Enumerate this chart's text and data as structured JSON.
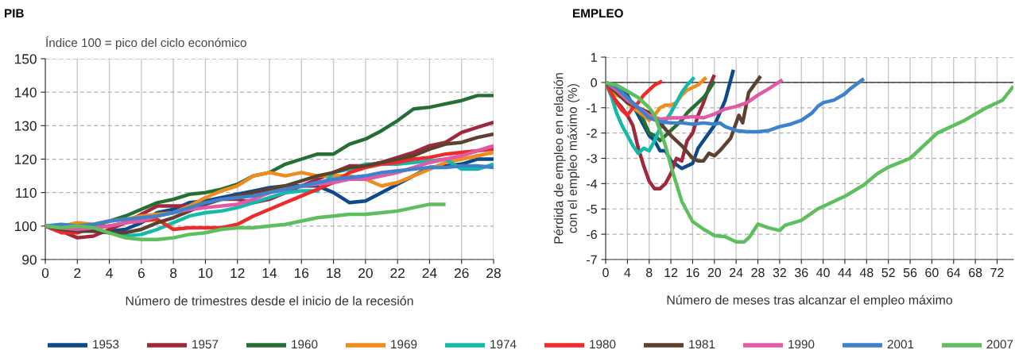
{
  "chart_data": [
    {
      "type": "line",
      "title": "PIB",
      "subtitle": "Índice 100 = pico del ciclo económico",
      "xlabel": "Número de trimestres desde el inicio de la recesión",
      "x": [
        0,
        1,
        2,
        3,
        4,
        5,
        6,
        7,
        8,
        9,
        10,
        11,
        12,
        13,
        14,
        15,
        16,
        17,
        18,
        19,
        20,
        21,
        22,
        23,
        24,
        25,
        26,
        27,
        28
      ],
      "xlim": [
        0,
        28
      ],
      "xticks": [
        0,
        2,
        4,
        6,
        8,
        10,
        12,
        14,
        16,
        18,
        20,
        22,
        24,
        26,
        28
      ],
      "ylim": [
        90,
        150
      ],
      "yticks": [
        90,
        100,
        110,
        120,
        130,
        140,
        150
      ],
      "grid": true,
      "legend": "bottom",
      "line_style": "solid",
      "marker": "none",
      "series": [
        {
          "name": "1953",
          "color": "#0d4a8a",
          "values": [
            100,
            99.5,
            99.5,
            98.5,
            98.5,
            99,
            101,
            104,
            105,
            107,
            107.5,
            108.5,
            109.5,
            110.5,
            111.5,
            112,
            112,
            112,
            110,
            107,
            107.5,
            110,
            112.5,
            115,
            117.5,
            118,
            118.5,
            120,
            120
          ]
        },
        {
          "name": "1957",
          "color": "#a0283c",
          "values": [
            100,
            98.5,
            96.5,
            97,
            99,
            101,
            103.5,
            106,
            106,
            106,
            107,
            108,
            108,
            107,
            108,
            110,
            112,
            114,
            116,
            118,
            118,
            119,
            120.5,
            122,
            124,
            125,
            128,
            129.5,
            131
          ]
        },
        {
          "name": "1960",
          "color": "#256f35",
          "values": [
            100,
            99.5,
            99.5,
            100,
            101.5,
            103,
            105,
            107,
            108,
            109.5,
            110,
            111,
            112.5,
            115,
            116,
            118.5,
            120,
            121.5,
            121.5,
            124.5,
            126,
            128.5,
            131.5,
            135,
            135.5,
            136.5,
            137.5,
            139,
            139
          ]
        },
        {
          "name": "1969",
          "color": "#f08c1e",
          "values": [
            100,
            100,
            101,
            100.5,
            101.5,
            102,
            103,
            103.5,
            104,
            106,
            108.5,
            110.5,
            112,
            115,
            116,
            115,
            116,
            115,
            115,
            115,
            114,
            112,
            113,
            115,
            117,
            119,
            120,
            121,
            122
          ]
        },
        {
          "name": "1974",
          "color": "#14b9a9",
          "values": [
            null,
            null,
            null,
            null,
            98,
            97,
            97.5,
            99,
            101,
            103,
            104,
            104.5,
            105.5,
            107,
            108.5,
            110,
            110.5,
            110.5,
            116,
            117,
            118.5,
            118.5,
            118.5,
            119,
            119.5,
            120,
            117,
            117,
            118.5
          ]
        },
        {
          "name": "1980",
          "color": "#ee2a2a",
          "values": [
            100,
            98,
            98,
            99.5,
            100,
            101,
            101.5,
            102,
            99,
            99.5,
            99.5,
            99.5,
            100.5,
            103,
            105,
            107,
            109,
            111,
            113,
            116,
            117.5,
            118.5,
            119,
            120,
            120.5,
            121.5,
            122,
            122.5,
            123
          ]
        },
        {
          "name": "1981",
          "color": "#5c4030",
          "values": [
            100,
            99,
            98.5,
            98.5,
            98,
            98,
            99,
            101,
            102.5,
            104.5,
            106.5,
            108,
            109,
            110,
            111,
            112,
            113.5,
            115,
            116,
            117.5,
            118,
            119,
            120,
            121,
            123,
            124.5,
            125,
            126.5,
            127.5
          ]
        },
        {
          "name": "1990",
          "color": "#e05aa5",
          "values": [
            100,
            99.5,
            99,
            99.5,
            100,
            101,
            101.5,
            103,
            104,
            105,
            105.5,
            106,
            106.5,
            108,
            110,
            111,
            112,
            112.5,
            113,
            114,
            114,
            115,
            116,
            117.5,
            119,
            120,
            121,
            122.5,
            124
          ]
        },
        {
          "name": "2001",
          "color": "#3f82cc",
          "values": [
            100,
            100.5,
            100,
            100.5,
            101.5,
            102,
            102.5,
            103,
            104,
            105.5,
            107,
            108,
            108.5,
            109,
            110,
            111,
            112,
            113,
            114,
            114.5,
            115,
            116,
            116.5,
            117,
            117.5,
            117.5,
            118,
            118,
            117.5
          ]
        },
        {
          "name": "2007",
          "color": "#5fbf5f",
          "values": [
            100,
            99.5,
            100,
            99.5,
            98,
            96.5,
            96,
            96,
            96.5,
            97.5,
            98,
            99,
            99.5,
            99.5,
            100,
            100.5,
            101.5,
            102.5,
            103,
            103.5,
            103.5,
            104,
            104.5,
            105.5,
            106.5,
            106.5,
            null,
            null,
            null
          ]
        }
      ]
    },
    {
      "type": "line",
      "title": "EMPLEO",
      "xlabel": "Número de meses tras alcanzar el empleo máximo",
      "ylabel": "Pérdida de empleo en relación\ncon el empleo máximo (%)",
      "xlim": [
        0,
        75
      ],
      "xticks": [
        0,
        4,
        8,
        12,
        16,
        20,
        24,
        28,
        32,
        36,
        40,
        44,
        48,
        52,
        56,
        60,
        64,
        68,
        72
      ],
      "ylim": [
        -7,
        1
      ],
      "yticks": [
        -7,
        -6,
        -5,
        -4,
        -3,
        -2,
        -1,
        0,
        1
      ],
      "grid": true,
      "line_style": "solid",
      "marker": "none",
      "ref_lines": [
        {
          "axis": "y",
          "value": 0,
          "color": "#222222"
        }
      ],
      "series": [
        {
          "color": "#0d4a8a",
          "x": [
            0,
            2,
            4,
            6,
            8,
            9,
            10,
            11,
            12,
            14,
            16,
            17,
            19,
            20,
            22,
            23.5
          ],
          "values": [
            0,
            -0.2,
            -0.5,
            -1.3,
            -2.1,
            -2.3,
            -2.7,
            -2.7,
            -3.1,
            -3.4,
            -3.2,
            -2.6,
            -2,
            -1.7,
            -0.7,
            0.5
          ]
        },
        {
          "color": "#a0283c",
          "x": [
            0,
            1,
            3,
            4,
            5,
            6,
            7,
            8,
            9,
            10,
            11,
            12,
            13,
            14,
            15,
            16,
            17,
            18,
            19,
            20
          ],
          "values": [
            0,
            -0.5,
            -1,
            -1.3,
            -1.7,
            -2.6,
            -3.3,
            -3.9,
            -4.2,
            -4.2,
            -4.0,
            -3.6,
            -3.0,
            -3.1,
            -2.3,
            -2.0,
            -1.3,
            -0.8,
            -0.2,
            0.3
          ]
        },
        {
          "color": "#256f35",
          "x": [
            0,
            2,
            4,
            5,
            6,
            7,
            8,
            9,
            10,
            11,
            12,
            14,
            15,
            16,
            17,
            18,
            19,
            20
          ],
          "values": [
            0,
            -0.2,
            -0.7,
            -0.9,
            -1.1,
            -1.5,
            -2.0,
            -2.1,
            -2.3,
            -2.1,
            -1.9,
            -1.5,
            -1.2,
            -1.0,
            -0.8,
            -0.6,
            -0.3,
            0.05
          ]
        },
        {
          "color": "#f08c1e",
          "x": [
            0,
            1,
            2,
            3,
            5,
            7,
            8,
            9,
            10,
            11,
            12,
            13,
            14,
            15,
            16,
            17,
            18.5
          ],
          "values": [
            0,
            -0.3,
            -0.5,
            -0.6,
            -1.0,
            -1.3,
            -1.5,
            -1.3,
            -1.0,
            -0.9,
            -0.9,
            -0.8,
            -0.5,
            -0.3,
            -0.2,
            -0.1,
            0.2
          ]
        },
        {
          "color": "#14b9a9",
          "x": [
            0,
            1,
            2,
            3,
            4,
            5,
            6,
            7,
            8,
            9,
            10,
            11,
            12,
            13,
            14,
            15,
            16.3
          ],
          "values": [
            0,
            -0.5,
            -1.2,
            -1.7,
            -2.1,
            -2.5,
            -2.8,
            -2.6,
            -2.7,
            -2.3,
            -1.8,
            -1.5,
            -1.2,
            -0.8,
            -0.4,
            -0.1,
            0.2
          ]
        },
        {
          "color": "#ee2a2a",
          "x": [
            0,
            1,
            2,
            3,
            4,
            5,
            6,
            7,
            8,
            9,
            10.4
          ],
          "values": [
            0,
            -0.4,
            -0.8,
            -1.1,
            -1.3,
            -1.0,
            -0.8,
            -0.5,
            -0.3,
            -0.1,
            0.05
          ]
        },
        {
          "color": "#5c4030",
          "x": [
            0,
            2,
            4,
            6,
            8,
            10,
            12,
            14,
            16,
            17,
            18,
            19,
            20,
            21,
            23,
            24.5,
            25.2,
            26.3,
            28.5
          ],
          "values": [
            0,
            -0.4,
            -0.8,
            -1.0,
            -1.2,
            -1.6,
            -2.1,
            -2.5,
            -3.0,
            -3.1,
            -3.1,
            -2.8,
            -2.9,
            -2.7,
            -2.2,
            -1.3,
            -1.6,
            -0.4,
            0.25
          ]
        },
        {
          "color": "#e05aa5",
          "x": [
            0,
            2,
            4,
            6,
            8,
            10,
            12,
            14,
            16,
            18,
            20,
            22,
            24,
            26,
            28,
            30,
            32.5
          ],
          "values": [
            0,
            -0.3,
            -0.7,
            -1.0,
            -1.3,
            -1.45,
            -1.4,
            -1.4,
            -1.35,
            -1.4,
            -1.25,
            -1.05,
            -0.95,
            -0.8,
            -0.5,
            -0.25,
            0.1
          ]
        },
        {
          "color": "#3f82cc",
          "x": [
            0,
            2,
            4,
            6,
            8,
            10,
            12,
            14,
            16,
            18,
            20,
            21,
            22,
            24,
            26,
            28,
            30,
            32,
            34,
            36,
            38,
            39,
            40,
            42,
            44,
            45,
            47.5
          ],
          "values": [
            0,
            -0.2,
            -0.6,
            -1.0,
            -1.4,
            -1.55,
            -1.6,
            -1.6,
            -1.65,
            -1.6,
            -1.65,
            -1.6,
            -1.75,
            -1.9,
            -1.95,
            -1.95,
            -1.9,
            -1.75,
            -1.65,
            -1.5,
            -1.2,
            -0.95,
            -0.8,
            -0.7,
            -0.45,
            -0.25,
            0.15
          ]
        },
        {
          "color": "#5fbf5f",
          "x": [
            0,
            2,
            4,
            6,
            8,
            9,
            10,
            11,
            12,
            13,
            14,
            15,
            16,
            18,
            20,
            22,
            24,
            25.5,
            26.5,
            28,
            30,
            32,
            33,
            36,
            39,
            44,
            47.5,
            50,
            52,
            56,
            61,
            66,
            70,
            73,
            75
          ],
          "values": [
            0,
            -0.1,
            -0.35,
            -0.6,
            -1.0,
            -1.3,
            -1.9,
            -2.5,
            -3.3,
            -4.0,
            -4.7,
            -5.1,
            -5.5,
            -5.8,
            -6.05,
            -6.1,
            -6.3,
            -6.3,
            -6.1,
            -5.6,
            -5.75,
            -5.85,
            -5.65,
            -5.45,
            -5.0,
            -4.5,
            -4.05,
            -3.6,
            -3.35,
            -3.0,
            -2.0,
            -1.5,
            -1.0,
            -0.7,
            -0.15
          ]
        }
      ]
    }
  ]
}
